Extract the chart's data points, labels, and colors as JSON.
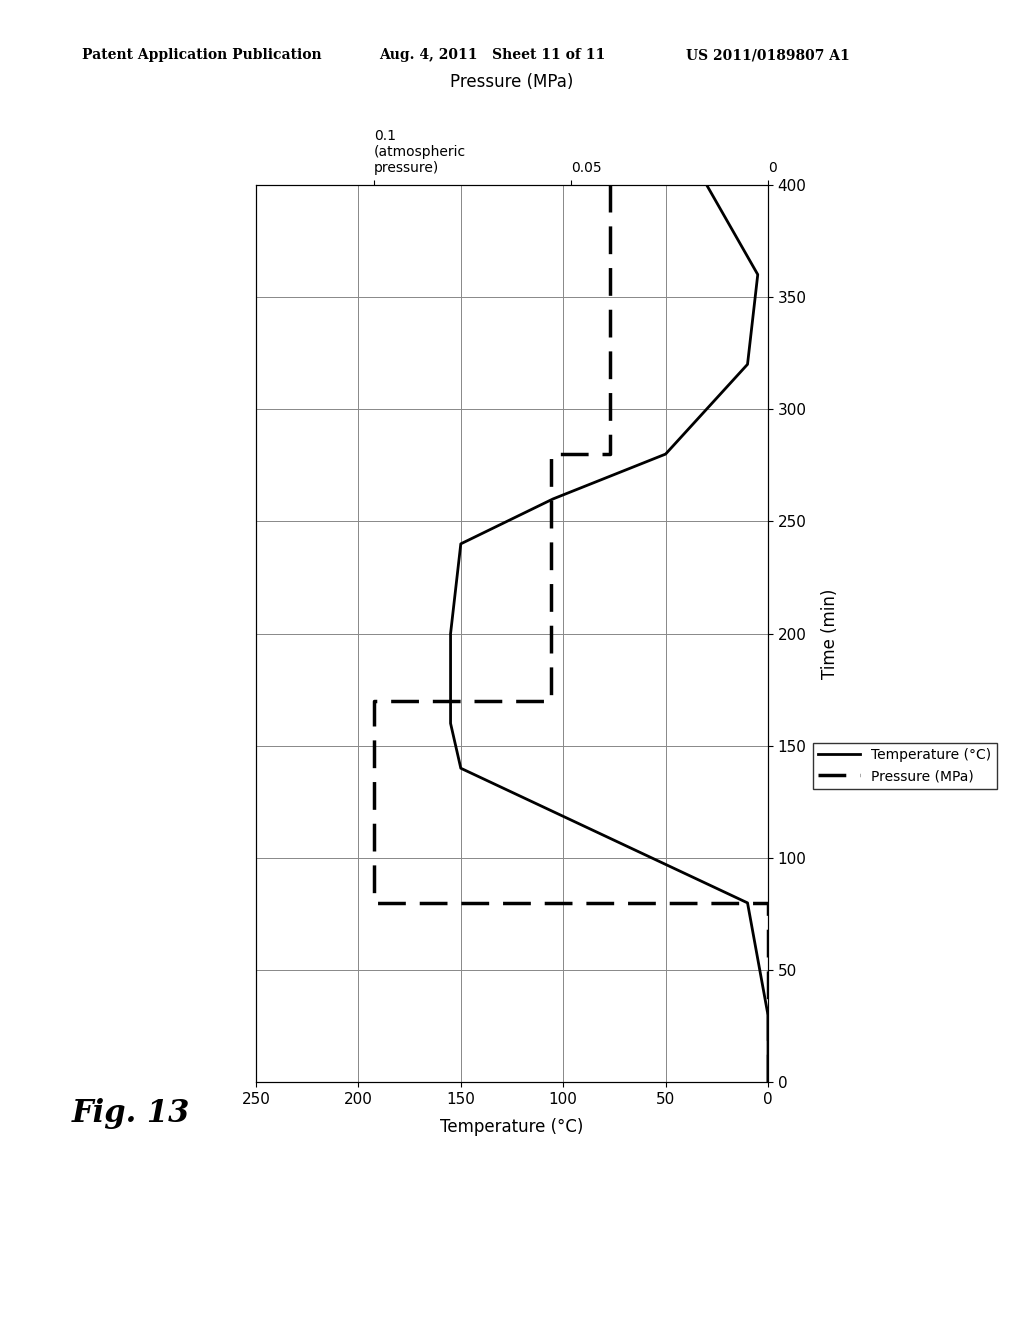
{
  "header_left": "Patent Application Publication",
  "header_mid": "Aug. 4, 2011   Sheet 11 of 11",
  "header_right": "US 2011/0189807 A1",
  "fig_label": "Fig. 13",
  "xlabel_bottom": "Temperature (°C)",
  "xlabel_top": "Pressure (MPa)",
  "ylabel_right": "Time (min)",
  "ylabel_left": "Pressure (MPa)",
  "xlim_temp": [
    250,
    0
  ],
  "xlim_pressure": [
    0.13,
    0
  ],
  "ylim_time": [
    0,
    400
  ],
  "xticks_temp": [
    0,
    50,
    100,
    150,
    200,
    250
  ],
  "xticks_pressure": [
    0,
    0.05,
    0.1
  ],
  "yticks_time": [
    0,
    50,
    100,
    150,
    200,
    250,
    300,
    350,
    400
  ],
  "pressure_top_label_0": "0",
  "pressure_top_label_005": "0.05",
  "pressure_top_label_01": "0.1\n(atmospheric\npressure)",
  "temp_line": {
    "time": [
      0,
      30,
      80,
      140,
      160,
      200,
      240,
      260,
      280,
      320,
      360,
      400
    ],
    "temp": [
      0,
      0,
      10,
      150,
      155,
      155,
      150,
      105,
      50,
      10,
      5,
      30
    ],
    "color": "#000000",
    "linewidth": 2.0,
    "linestyle": "solid",
    "label": "Temperature (°C)"
  },
  "pressure_line": {
    "time": [
      0,
      80,
      80,
      160,
      160,
      170,
      170,
      280,
      280,
      310,
      310,
      400
    ],
    "pressure": [
      0.0,
      0.0,
      0.1,
      0.1,
      0.1,
      0.1,
      0.055,
      0.055,
      0.04,
      0.04,
      0.04,
      0.04
    ],
    "color": "#000000",
    "linewidth": 2.5,
    "linestyle": "dashed",
    "label": "Pressure (MPa)",
    "dashes": [
      8,
      4
    ]
  },
  "grid": true,
  "background_color": "#ffffff"
}
